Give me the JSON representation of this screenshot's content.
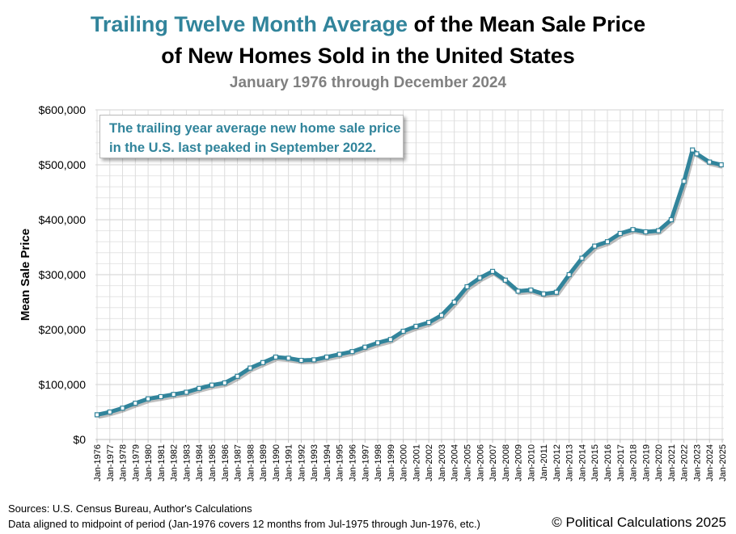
{
  "chart_data": {
    "type": "line",
    "title_highlight": "Trailing Twelve Month Average",
    "title_rest": " of the Mean Sale Price",
    "title_line2": "of New Homes Sold in the United States",
    "subtitle": "January 1976 through December 2024",
    "ylabel": "Mean Sale Price",
    "xlabel": "",
    "ylim": [
      0,
      600000
    ],
    "yticks": [
      "$0",
      "$100,000",
      "$200,000",
      "$300,000",
      "$400,000",
      "$500,000",
      "$600,000"
    ],
    "xticks": [
      "Jan-1976",
      "Jan-1977",
      "Jan-1978",
      "Jan-1979",
      "Jan-1980",
      "Jan-1981",
      "Jan-1982",
      "Jan-1983",
      "Jan-1984",
      "Jan-1985",
      "Jan-1986",
      "Jan-1987",
      "Jan-1988",
      "Jan-1989",
      "Jan-1990",
      "Jan-1991",
      "Jan-1992",
      "Jan-1993",
      "Jan-1994",
      "Jan-1995",
      "Jan-1996",
      "Jan-1997",
      "Jan-1998",
      "Jan-1999",
      "Jan-2000",
      "Jan-2001",
      "Jan-2002",
      "Jan-2003",
      "Jan-2004",
      "Jan-2005",
      "Jan-2006",
      "Jan-2007",
      "Jan-2008",
      "Jan-2009",
      "Jan-2010",
      "Jan-2011",
      "Jan-2012",
      "Jan-2013",
      "Jan-2014",
      "Jan-2015",
      "Jan-2016",
      "Jan-2017",
      "Jan-2018",
      "Jan-2019",
      "Jan-2020",
      "Jan-2021",
      "Jan-2022",
      "Jan-2023",
      "Jan-2024",
      "Jan-2025"
    ],
    "grid": true,
    "color": "#31849b",
    "x": [
      "1976-01",
      "1977-01",
      "1978-01",
      "1979-01",
      "1980-01",
      "1981-01",
      "1982-01",
      "1983-01",
      "1984-01",
      "1985-01",
      "1986-01",
      "1987-01",
      "1988-01",
      "1989-01",
      "1990-01",
      "1991-01",
      "1992-01",
      "1993-01",
      "1994-01",
      "1995-01",
      "1996-01",
      "1997-01",
      "1998-01",
      "1999-01",
      "2000-01",
      "2001-01",
      "2002-01",
      "2003-01",
      "2004-01",
      "2005-01",
      "2006-01",
      "2007-01",
      "2008-01",
      "2009-01",
      "2010-01",
      "2011-01",
      "2012-01",
      "2013-01",
      "2014-01",
      "2015-01",
      "2016-01",
      "2017-01",
      "2018-01",
      "2019-01",
      "2020-01",
      "2021-01",
      "2022-01",
      "2022-09",
      "2023-01",
      "2024-01",
      "2024-12"
    ],
    "values": [
      45000,
      50000,
      57000,
      66000,
      74000,
      78000,
      82000,
      86000,
      93000,
      99000,
      103000,
      115000,
      130000,
      140000,
      150000,
      148000,
      144000,
      145000,
      150000,
      155000,
      160000,
      168000,
      176000,
      182000,
      197000,
      206000,
      213000,
      226000,
      250000,
      278000,
      294000,
      306000,
      290000,
      270000,
      272000,
      265000,
      268000,
      300000,
      330000,
      352000,
      360000,
      375000,
      382000,
      378000,
      380000,
      400000,
      470000,
      527000,
      520000,
      505000,
      500000
    ],
    "annotation": [
      "The trailing year average new home sale price",
      "in the U.S. last peaked in September 2022."
    ]
  },
  "footer": {
    "sources": "Sources: U.S. Census Bureau, Author's Calculations",
    "alignment": "Data aligned to midpoint of period (Jan-1976 covers 12 months from Jul-1975 through Jun-1976, etc.)",
    "copyright": "© Political Calculations 2025"
  }
}
